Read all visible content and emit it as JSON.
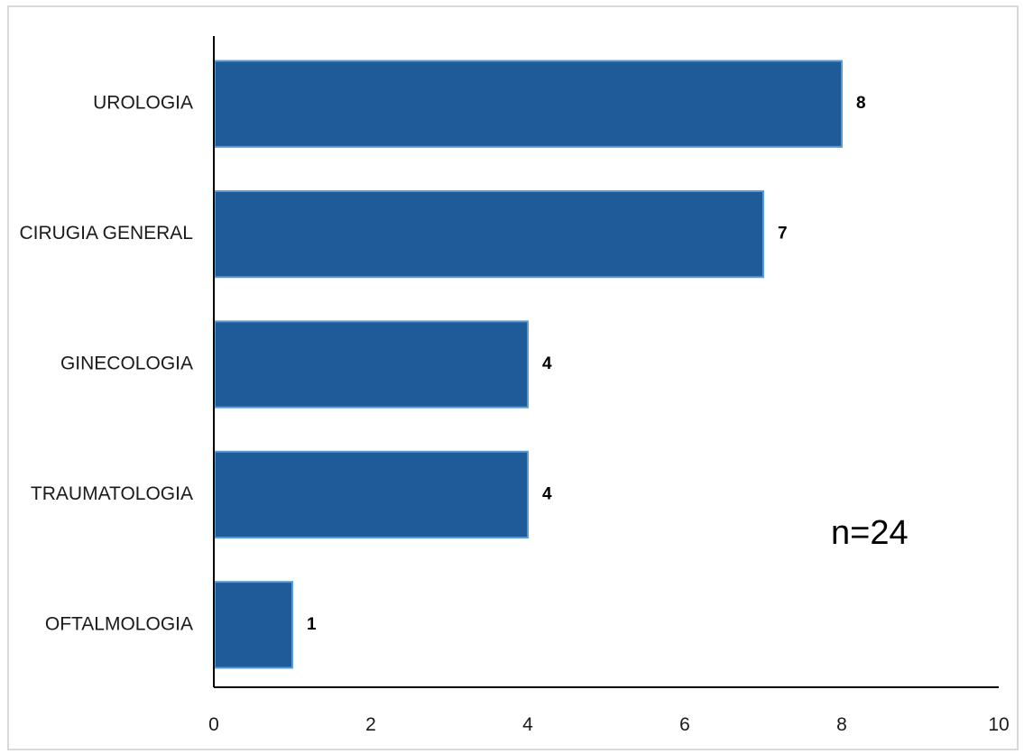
{
  "chart_data": {
    "type": "bar",
    "orientation": "horizontal",
    "categories": [
      "UROLOGIA",
      "CIRUGIA GENERAL",
      "GINECOLOGIA",
      "TRAUMATOLOGIA",
      "OFTALMOLOGIA"
    ],
    "values": [
      8,
      7,
      4,
      4,
      1
    ],
    "data_labels": [
      "8",
      "7",
      "4",
      "4",
      "1"
    ],
    "xlim": [
      0,
      10
    ],
    "xticks": [
      "0",
      "2",
      "4",
      "6",
      "8",
      "10"
    ],
    "title": "",
    "xlabel": "",
    "ylabel": "",
    "grid": false,
    "bar_color": "#1f5b99",
    "bar_edge_color": "#5b9bd5",
    "annotation": "n=24"
  }
}
